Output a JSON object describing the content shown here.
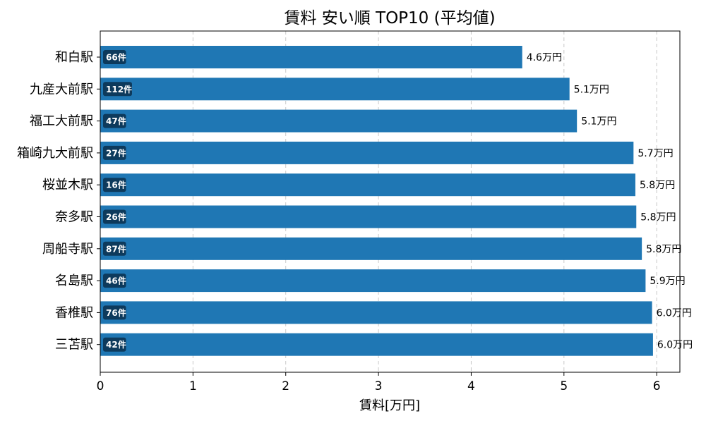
{
  "chart_data": {
    "type": "bar",
    "orientation": "horizontal",
    "title": "賃料 安い順 TOP10 (平均値)",
    "xlabel": "賃料[万円]",
    "ylabel": "",
    "xlim": [
      0,
      6.25
    ],
    "xticks": [
      "0",
      "1",
      "2",
      "3",
      "4",
      "5",
      "6"
    ],
    "grid": "x-dashed",
    "bar_color": "#1f77b4",
    "badge_color": "#0d3a5c",
    "categories": [
      "和白駅",
      "九産大前駅",
      "福工大前駅",
      "箱崎九大前駅",
      "桜並木駅",
      "奈多駅",
      "周船寺駅",
      "名島駅",
      "香椎駅",
      "三苫駅"
    ],
    "values": [
      4.55,
      5.06,
      5.14,
      5.75,
      5.77,
      5.78,
      5.84,
      5.88,
      5.95,
      5.96
    ],
    "value_labels": [
      "4.6万円",
      "5.1万円",
      "5.1万円",
      "5.7万円",
      "5.8万円",
      "5.8万円",
      "5.8万円",
      "5.9万円",
      "6.0万円",
      "6.0万円"
    ],
    "count_labels": [
      "66件",
      "112件",
      "47件",
      "27件",
      "16件",
      "26件",
      "87件",
      "46件",
      "76件",
      "42件"
    ]
  }
}
